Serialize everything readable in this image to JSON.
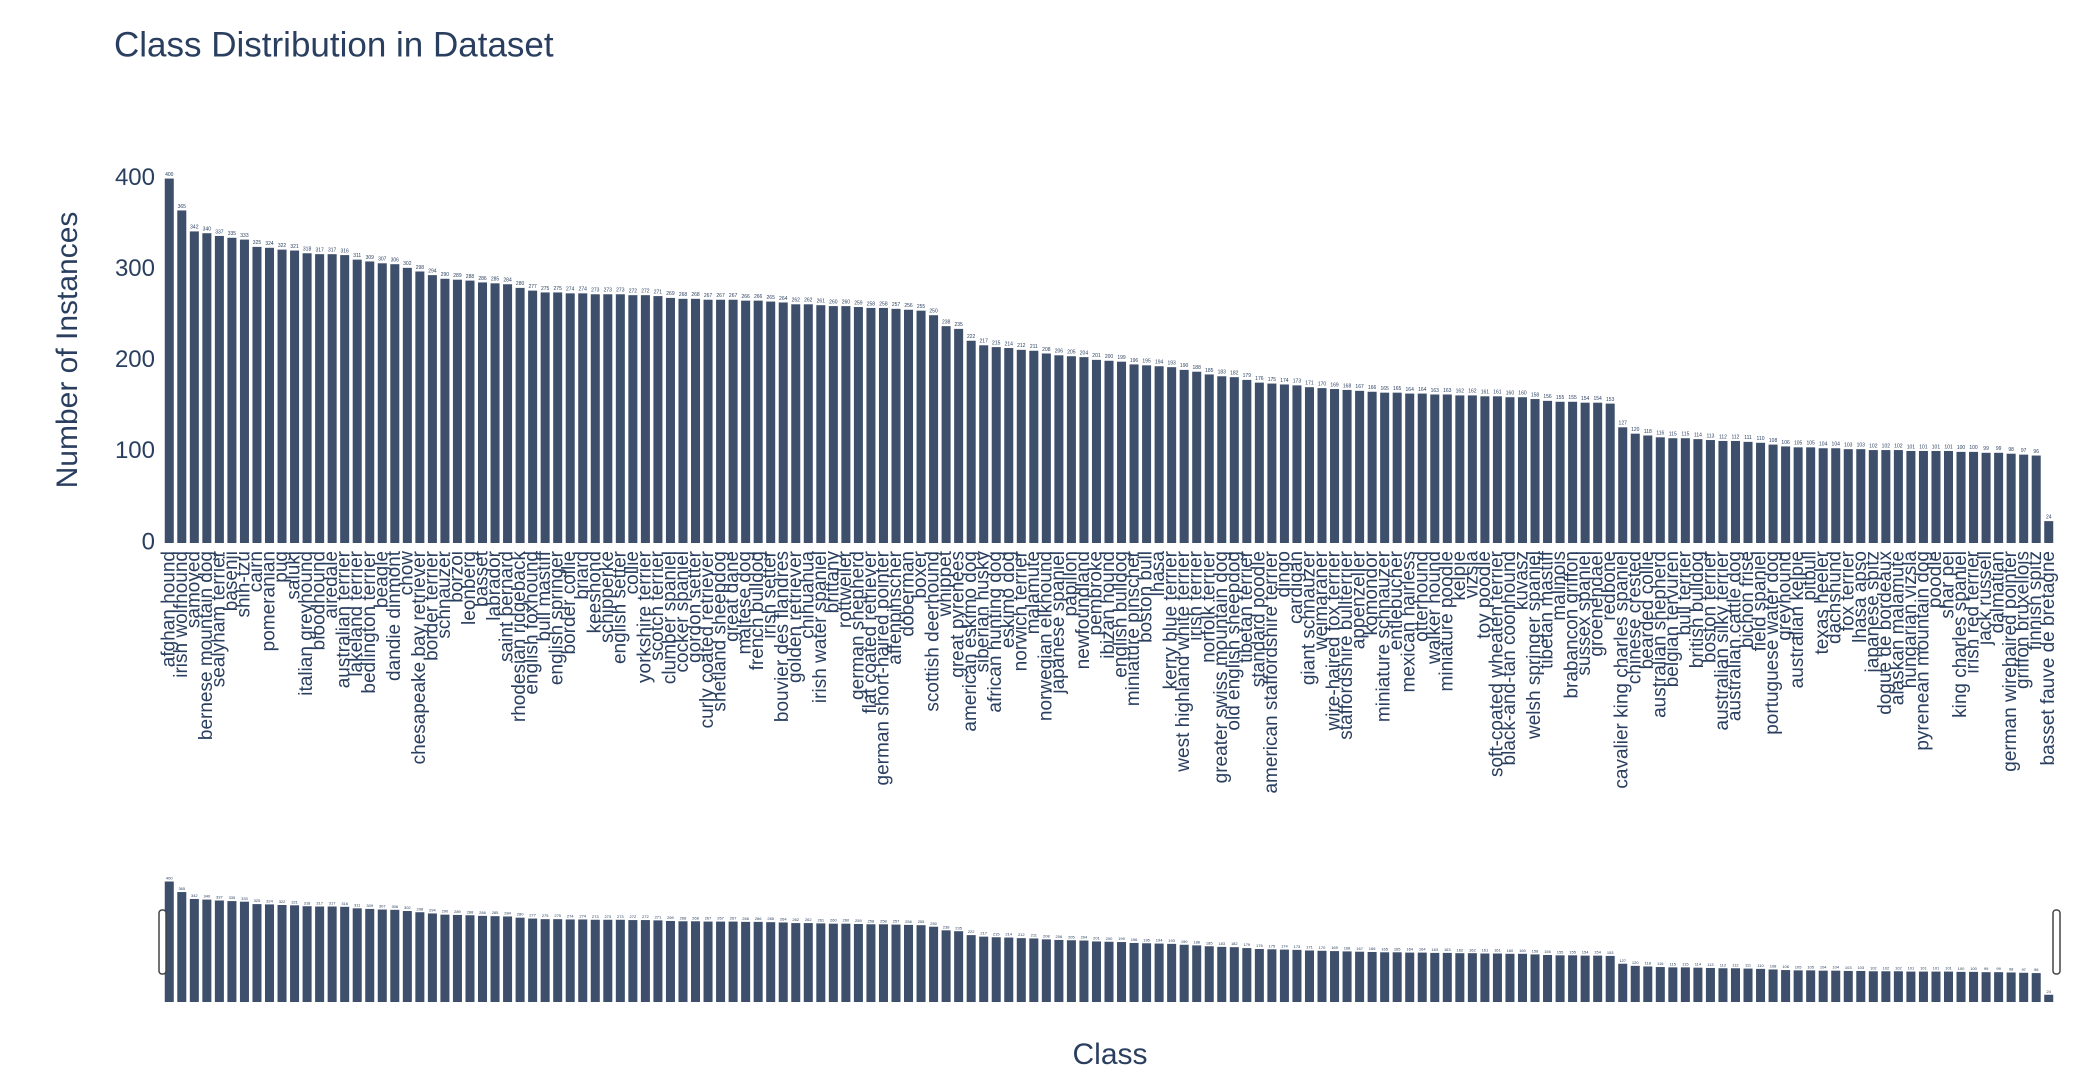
{
  "chart_data": {
    "type": "bar",
    "title": "Class Distribution in Dataset",
    "x_label": "Class",
    "y_label": "Number of Instances",
    "color": "#3e4f6b",
    "grid": false,
    "ylim": [
      0,
      405
    ],
    "yticks": [
      0,
      100,
      200,
      300,
      400
    ],
    "categories": [
      "afghan hound",
      "irish wolfhound",
      "samoyed",
      "bernese mountain dog",
      "sealyham terrier",
      "basenji",
      "shih-tzu",
      "cairn",
      "pomeranian",
      "pug",
      "saluki",
      "italian greyhound",
      "bloodhound",
      "airedale",
      "australian terrier",
      "lakeland terrier",
      "bedlington terrier",
      "beagle",
      "dandie dinmont",
      "chow",
      "chesapeake bay retriever",
      "border terrier",
      "schnauzer",
      "borzoi",
      "leonberg",
      "basset",
      "labrador",
      "saint bernard",
      "rhodesian ridgeback",
      "english foxhound",
      "bull mastiff",
      "english springer",
      "border collie",
      "briard",
      "keeshond",
      "schipperke",
      "english setter",
      "collie",
      "yorkshire terrier",
      "scotch terrier",
      "clumber spaniel",
      "cocker spaniel",
      "gordon setter",
      "curly coated retriever",
      "shetland sheepdog",
      "great dane",
      "maltese dog",
      "french bulldog",
      "irish setter",
      "bouvier des flandres",
      "golden retriever",
      "chihuahua",
      "irish water spaniel",
      "brittany",
      "rottweiler",
      "german shepherd",
      "flat coated retriever",
      "german short-haired pointer",
      "affenpinscher",
      "doberman",
      "boxer",
      "scottish deerhound",
      "whippet",
      "great pyrenees",
      "american eskimo dog",
      "siberian husky",
      "african hunting dog",
      "eskimo dog",
      "norwich terrier",
      "malamute",
      "norwegian elkhound",
      "japanese spaniel",
      "papillon",
      "newfoundland",
      "pembroke",
      "ibizan hound",
      "english bulldog",
      "miniature pinscher",
      "boston bull",
      "lhasa",
      "kerry blue terrier",
      "west highland white terrier",
      "irish terrier",
      "norfolk terrier",
      "greater swiss mountain dog",
      "old english sheepdog",
      "tibetan terrier",
      "standard poodle",
      "american staffordshire terrier",
      "dingo",
      "cardigan",
      "giant schnauzer",
      "weimaraner",
      "wire-haired fox terrier",
      "staffordshire bullterrier",
      "appenzeller",
      "komondor",
      "miniature schnauzer",
      "entlebucher",
      "mexican hairless",
      "otterhound",
      "walker hound",
      "miniature poodle",
      "kelpie",
      "vizsla",
      "toy poodle",
      "soft-coated wheaten terrier",
      "black-and-tan coonhound",
      "kuvasz",
      "welsh springer spaniel",
      "tibetan mastiff",
      "malinois",
      "brabancon griffon",
      "sussex spaniel",
      "groenendael",
      "redbone",
      "cavalier king charles spaniel",
      "chinese crested",
      "bearded collie",
      "australian shepherd",
      "belgian tervuren",
      "bull terrier",
      "british bulldog",
      "boston terrier",
      "australian silky terrier",
      "australian cattle dog",
      "bichon frise",
      "field spaniel",
      "portuguese water dog",
      "greyhound",
      "australian kelpie",
      "pitbull",
      "texas heeler",
      "dachshund",
      "fox terrier",
      "lhasa apso",
      "japanese spitz",
      "dogue de bordeaux",
      "alaskan malamute",
      "hungarian vizsla",
      "pyrenean mountain dog",
      "poodle",
      "shar pei",
      "king charles spaniel",
      "irish red terrier",
      "jack russell",
      "dalmatian",
      "german wirehaired pointer",
      "griffon bruxellois",
      "finnish spitz",
      "basset fauve de bretagne"
    ],
    "values": [
      400,
      365,
      342,
      340,
      337,
      335,
      333,
      325,
      324,
      322,
      321,
      318,
      317,
      317,
      316,
      311,
      309,
      307,
      306,
      302,
      298,
      294,
      290,
      289,
      288,
      286,
      285,
      284,
      280,
      277,
      275,
      275,
      274,
      274,
      273,
      273,
      273,
      272,
      272,
      271,
      269,
      268,
      268,
      267,
      267,
      267,
      266,
      266,
      265,
      264,
      262,
      262,
      261,
      260,
      260,
      259,
      258,
      258,
      257,
      256,
      255,
      250,
      238,
      235,
      222,
      217,
      215,
      214,
      212,
      211,
      208,
      206,
      205,
      204,
      201,
      200,
      199,
      196,
      195,
      194,
      193,
      190,
      188,
      185,
      183,
      182,
      179,
      176,
      175,
      174,
      173,
      171,
      170,
      169,
      168,
      167,
      166,
      165,
      165,
      164,
      164,
      163,
      163,
      162,
      162,
      161,
      161,
      160,
      160,
      158,
      156,
      155,
      155,
      154,
      154,
      153,
      127,
      120,
      118,
      116,
      115,
      115,
      114,
      113,
      112,
      112,
      111,
      110,
      108,
      106,
      105,
      105,
      104,
      104,
      103,
      103,
      102,
      102,
      102,
      101,
      101,
      101,
      101,
      100,
      100,
      99,
      99,
      98,
      97,
      96,
      24
    ]
  }
}
